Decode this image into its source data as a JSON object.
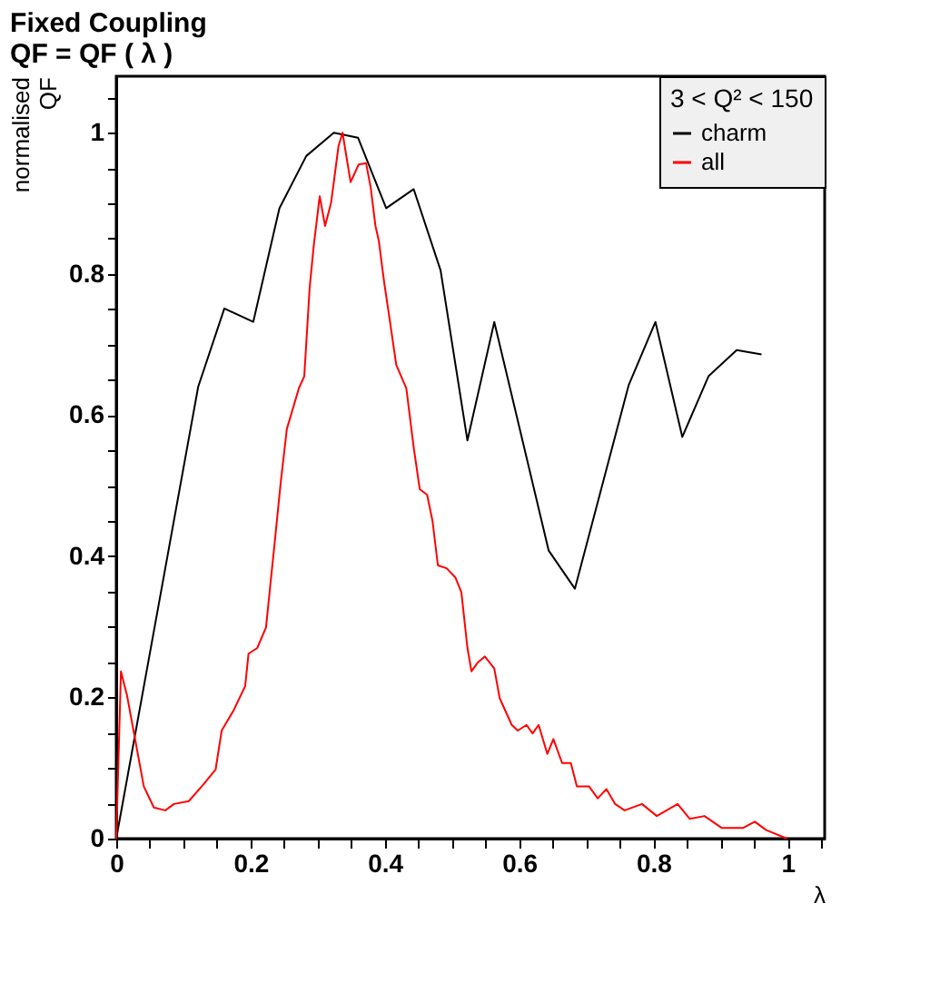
{
  "chart_data": {
    "type": "line",
    "title": "Fixed Coupling\nQF = QF ( λ )",
    "xlabel": "λ",
    "ylabel": "normalised\nQF",
    "legend_title": "3 < Q² < 150",
    "legend": "top right",
    "grid": false,
    "line_style": "solid",
    "xlim": [
      0,
      1.055
    ],
    "ylim": [
      0,
      1.08
    ],
    "xticks": [
      0,
      {
        "value": 0.05,
        "label": null
      },
      {
        "value": 0.1,
        "label": null
      },
      {
        "value": 0.15,
        "label": null
      },
      0.2,
      {
        "value": 0.25,
        "label": null
      },
      {
        "value": 0.3,
        "label": null
      },
      {
        "value": 0.35,
        "label": null
      },
      0.4,
      {
        "value": 0.45,
        "label": null
      },
      {
        "value": 0.5,
        "label": null
      },
      {
        "value": 0.55,
        "label": null
      },
      0.6,
      {
        "value": 0.65,
        "label": null
      },
      {
        "value": 0.7,
        "label": null
      },
      {
        "value": 0.75,
        "label": null
      },
      0.8,
      {
        "value": 0.85,
        "label": null
      },
      {
        "value": 0.9,
        "label": null
      },
      {
        "value": 0.95,
        "label": null
      },
      1,
      {
        "value": 1.05,
        "label": null
      }
    ],
    "yticks": [
      0,
      {
        "value": 0.05,
        "label": null
      },
      {
        "value": 0.1,
        "label": null
      },
      {
        "value": 0.15,
        "label": null
      },
      0.2,
      {
        "value": 0.25,
        "label": null
      },
      {
        "value": 0.3,
        "label": null
      },
      {
        "value": 0.35,
        "label": null
      },
      0.4,
      {
        "value": 0.45,
        "label": null
      },
      {
        "value": 0.5,
        "label": null
      },
      {
        "value": 0.55,
        "label": null
      },
      0.6,
      {
        "value": 0.65,
        "label": null
      },
      {
        "value": 0.7,
        "label": null
      },
      {
        "value": 0.75,
        "label": null
      },
      0.8,
      {
        "value": 0.85,
        "label": null
      },
      {
        "value": 0.9,
        "label": null
      },
      {
        "value": 0.95,
        "label": null
      },
      1,
      {
        "value": 1.05,
        "label": null
      }
    ],
    "series": [
      {
        "name": "charm",
        "color": "#000000",
        "x": [
          0,
          0.122,
          0.161,
          0.204,
          0.243,
          0.283,
          0.324,
          0.36,
          0.402,
          0.443,
          0.483,
          0.523,
          0.563,
          0.644,
          0.683,
          0.763,
          0.803,
          0.843,
          0.882,
          0.924,
          0.961
        ],
        "values": [
          0,
          0.64,
          0.751,
          0.732,
          0.893,
          0.967,
          1.0,
          0.993,
          0.893,
          0.92,
          0.805,
          0.564,
          0.732,
          0.408,
          0.354,
          0.642,
          0.732,
          0.569,
          0.655,
          0.692,
          0.686
        ]
      },
      {
        "name": "all",
        "color": "#ff0000",
        "x": [
          0,
          0.007,
          0.016,
          0.029,
          0.041,
          0.056,
          0.073,
          0.086,
          0.108,
          0.13,
          0.148,
          0.157,
          0.175,
          0.192,
          0.197,
          0.21,
          0.223,
          0.236,
          0.245,
          0.254,
          0.272,
          0.28,
          0.288,
          0.294,
          0.303,
          0.311,
          0.32,
          0.331,
          0.337,
          0.349,
          0.361,
          0.372,
          0.379,
          0.386,
          0.391,
          0.399,
          0.408,
          0.417,
          0.432,
          0.443,
          0.452,
          0.463,
          0.471,
          0.479,
          0.492,
          0.505,
          0.514,
          0.523,
          0.529,
          0.538,
          0.549,
          0.563,
          0.571,
          0.589,
          0.598,
          0.611,
          0.62,
          0.629,
          0.642,
          0.651,
          0.664,
          0.677,
          0.686,
          0.704,
          0.717,
          0.73,
          0.743,
          0.757,
          0.783,
          0.805,
          0.836,
          0.854,
          0.876,
          0.902,
          0.933,
          0.951,
          0.968,
          0.999
        ],
        "values": [
          0,
          0.237,
          0.203,
          0.136,
          0.074,
          0.044,
          0.04,
          0.049,
          0.053,
          0.077,
          0.098,
          0.153,
          0.182,
          0.216,
          0.262,
          0.27,
          0.299,
          0.42,
          0.505,
          0.58,
          0.638,
          0.655,
          0.78,
          0.839,
          0.91,
          0.868,
          0.901,
          0.981,
          1.0,
          0.93,
          0.955,
          0.957,
          0.922,
          0.868,
          0.847,
          0.788,
          0.73,
          0.671,
          0.638,
          0.554,
          0.495,
          0.487,
          0.45,
          0.387,
          0.383,
          0.37,
          0.349,
          0.27,
          0.237,
          0.249,
          0.258,
          0.241,
          0.199,
          0.161,
          0.153,
          0.161,
          0.149,
          0.161,
          0.12,
          0.141,
          0.107,
          0.107,
          0.074,
          0.074,
          0.057,
          0.07,
          0.049,
          0.04,
          0.049,
          0.032,
          0.049,
          0.028,
          0.032,
          0.015,
          0.015,
          0.024,
          0.012,
          0
        ]
      }
    ]
  }
}
